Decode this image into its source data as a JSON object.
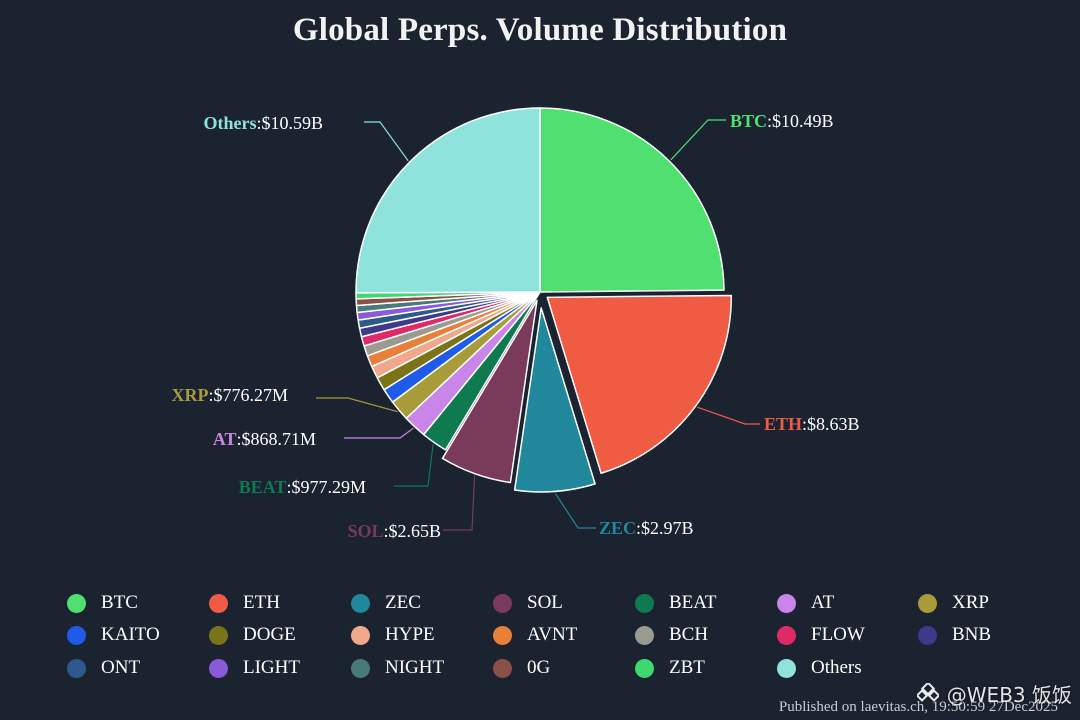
{
  "chart_data": {
    "type": "pie",
    "title": "Global Perps. Volume Distribution",
    "slices": [
      {
        "name": "BTC",
        "value": 10.49,
        "label": "BTC",
        "value_text": ":$10.49B",
        "color": "#4fe06f"
      },
      {
        "name": "ETH",
        "value": 8.63,
        "label": "ETH",
        "value_text": ":$8.63B",
        "color": "#f05b43"
      },
      {
        "name": "ZEC",
        "value": 2.97,
        "label": "ZEC",
        "value_text": ":$2.97B",
        "color": "#21879a"
      },
      {
        "name": "SOL",
        "value": 2.65,
        "label": "SOL",
        "value_text": ":$2.65B",
        "color": "#7a3a5a"
      },
      {
        "name": "BEAT",
        "value": 0.97729,
        "label": "BEAT",
        "value_text": ":$977.29M",
        "color": "#0f7a50"
      },
      {
        "name": "AT",
        "value": 0.86871,
        "label": "AT",
        "value_text": ":$868.71M",
        "color": "#c985e8"
      },
      {
        "name": "XRP",
        "value": 0.77627,
        "label": "XRP",
        "value_text": ":$776.27M",
        "color": "#a89b3a"
      },
      {
        "name": "KAITO",
        "value": 0.55,
        "color": "#1f5ae8"
      },
      {
        "name": "DOGE",
        "value": 0.5,
        "color": "#7a7318"
      },
      {
        "name": "HYPE",
        "value": 0.46,
        "color": "#f0a88c"
      },
      {
        "name": "AVNT",
        "value": 0.42,
        "color": "#e8803a"
      },
      {
        "name": "BCH",
        "value": 0.38,
        "color": "#9a9a90"
      },
      {
        "name": "FLOW",
        "value": 0.35,
        "color": "#e02a68"
      },
      {
        "name": "BNB",
        "value": 0.32,
        "color": "#3d3a8c"
      },
      {
        "name": "ONT",
        "value": 0.3,
        "color": "#2d5a8a"
      },
      {
        "name": "LIGHT",
        "value": 0.28,
        "color": "#8a5ad8"
      },
      {
        "name": "NIGHT",
        "value": 0.26,
        "color": "#4a7a78"
      },
      {
        "name": "0G",
        "value": 0.24,
        "color": "#8a5048"
      },
      {
        "name": "ZBT",
        "value": 0.22,
        "color": "#3ed870"
      },
      {
        "name": "Others",
        "value": 10.59,
        "label": "Others",
        "value_text": ":$10.59B",
        "color": "#8ee3dc"
      }
    ]
  },
  "footer": {
    "published": "Published on laevitas.ch, 19:50:59 27Dec2025"
  },
  "watermark": {
    "text": "@WEB3 饭饭"
  }
}
